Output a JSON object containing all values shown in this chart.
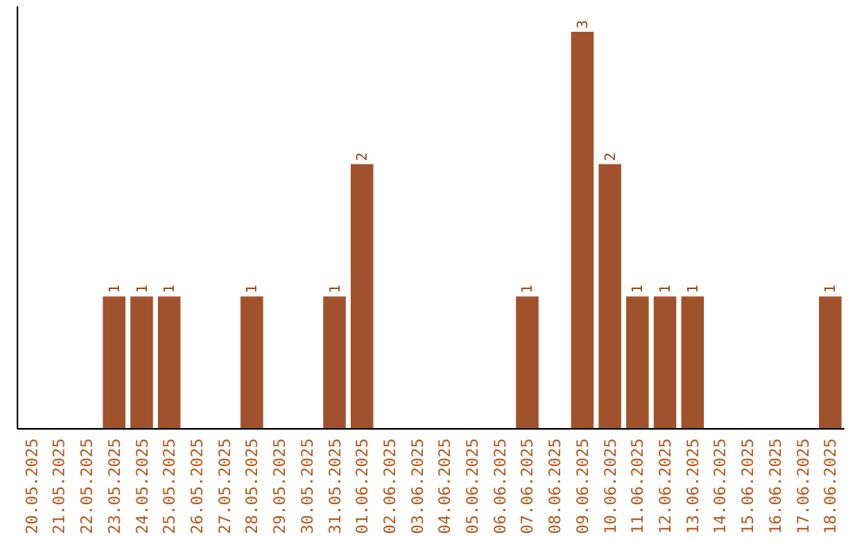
{
  "chart_data": {
    "type": "bar",
    "categories": [
      "20.05.2025",
      "21.05.2025",
      "22.05.2025",
      "23.05.2025",
      "24.05.2025",
      "25.05.2025",
      "26.05.2025",
      "27.05.2025",
      "28.05.2025",
      "29.05.2025",
      "30.05.2025",
      "31.05.2025",
      "01.06.2025",
      "02.06.2025",
      "03.06.2025",
      "04.06.2025",
      "05.06.2025",
      "06.06.2025",
      "07.06.2025",
      "08.06.2025",
      "09.06.2025",
      "10.06.2025",
      "11.06.2025",
      "12.06.2025",
      "13.06.2025",
      "14.06.2025",
      "15.06.2025",
      "16.06.2025",
      "17.06.2025",
      "18.06.2025"
    ],
    "values": [
      0,
      0,
      0,
      1,
      1,
      1,
      0,
      0,
      1,
      0,
      0,
      1,
      2,
      0,
      0,
      0,
      0,
      0,
      1,
      0,
      3,
      2,
      1,
      1,
      1,
      0,
      0,
      0,
      0,
      1
    ],
    "value_labels": [
      null,
      null,
      null,
      "1",
      "1",
      "1",
      null,
      null,
      "1",
      null,
      null,
      "1",
      "2",
      null,
      null,
      null,
      null,
      null,
      "1",
      null,
      "3",
      "2",
      "1",
      "1",
      "1",
      null,
      null,
      null,
      null,
      "1"
    ],
    "color": "#a0522d"
  }
}
